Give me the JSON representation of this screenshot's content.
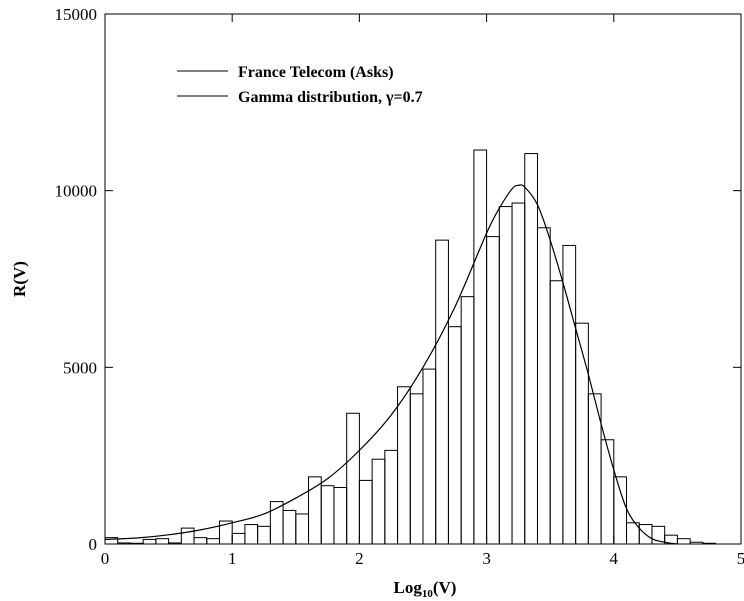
{
  "chart_data": {
    "type": "bar",
    "xlabel": "Log",
    "xlabel_sub": "10",
    "xlabel_suffix": "(V)",
    "ylabel": "R(V)",
    "xlim": [
      0,
      5
    ],
    "ylim": [
      0,
      15000
    ],
    "x_ticks": [
      {
        "value": 0,
        "label": "0"
      },
      {
        "value": 1,
        "label": "1"
      },
      {
        "value": 2,
        "label": "2"
      },
      {
        "value": 3,
        "label": "3"
      },
      {
        "value": 4,
        "label": "4"
      },
      {
        "value": 5,
        "label": "5"
      }
    ],
    "y_ticks": [
      {
        "value": 0,
        "label": "0"
      },
      {
        "value": 5000,
        "label": "5000"
      },
      {
        "value": 10000,
        "label": "10000"
      },
      {
        "value": 15000,
        "label": "15000"
      }
    ],
    "grid": false,
    "legend_position": "top-left",
    "legend": [
      {
        "label": "France Telecom (Asks)",
        "style": "bars"
      },
      {
        "label": "Gamma distribution, γ=0.7",
        "style": "line"
      }
    ],
    "series": [
      {
        "type": "bar",
        "bin_width": 0.1,
        "x_start": [
          0.0,
          0.1,
          0.2,
          0.3,
          0.4,
          0.5,
          0.6,
          0.7,
          0.8,
          0.9,
          1.0,
          1.1,
          1.2,
          1.3,
          1.4,
          1.5,
          1.6,
          1.7,
          1.8,
          1.9,
          2.0,
          2.1,
          2.2,
          2.3,
          2.4,
          2.5,
          2.6,
          2.7,
          2.8,
          2.9,
          3.0,
          3.1,
          3.2,
          3.3,
          3.4,
          3.5,
          3.6,
          3.7,
          3.8,
          3.9,
          4.0,
          4.1,
          4.2,
          4.3,
          4.4,
          4.5,
          4.6,
          4.7,
          4.8,
          4.9
        ],
        "values": [
          180,
          30,
          20,
          130,
          150,
          30,
          450,
          180,
          150,
          650,
          300,
          550,
          500,
          1200,
          950,
          850,
          1900,
          1650,
          1600,
          3700,
          1800,
          2400,
          2650,
          4450,
          4250,
          4950,
          8600,
          6150,
          7000,
          11150,
          8700,
          9550,
          9650,
          11050,
          8950,
          7450,
          8450,
          6250,
          4250,
          2950,
          1900,
          600,
          550,
          500,
          250,
          150,
          50,
          20,
          0,
          0
        ]
      },
      {
        "type": "line",
        "x": [
          0,
          0.25,
          0.5,
          0.75,
          1.0,
          1.25,
          1.5,
          1.75,
          2.0,
          2.25,
          2.5,
          2.75,
          3.0,
          3.1,
          3.2,
          3.25,
          3.3,
          3.4,
          3.5,
          3.6,
          3.7,
          3.8,
          3.9,
          4.0,
          4.1,
          4.2,
          4.3,
          4.4,
          4.5
        ],
        "y": [
          130,
          170,
          260,
          400,
          600,
          850,
          1300,
          1850,
          2650,
          3650,
          5000,
          6700,
          8800,
          9500,
          10050,
          10150,
          10100,
          9600,
          8600,
          7400,
          6100,
          4800,
          3400,
          2100,
          1000,
          450,
          150,
          50,
          0
        ]
      }
    ]
  }
}
